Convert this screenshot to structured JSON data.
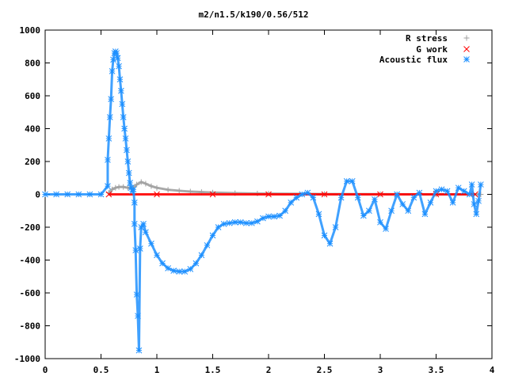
{
  "chart_data": {
    "type": "scatter",
    "title": "m2/n1.5/k190/0.56/512",
    "xlabel": "",
    "ylabel": "",
    "xlim": [
      0,
      4
    ],
    "ylim": [
      -1000,
      1000
    ],
    "x_ticks": [
      "0",
      "0.5",
      "1",
      "1.5",
      "2",
      "2.5",
      "3",
      "3.5",
      "4"
    ],
    "y_ticks": [
      "1000",
      "800",
      "600",
      "400",
      "200",
      "0",
      "-200",
      "-400",
      "-600",
      "-800",
      "-1000"
    ],
    "legend_position": "top-right",
    "grid": false,
    "series": [
      {
        "name": "R stress",
        "marker": "+",
        "color": "#a0a0a0",
        "x": [
          0.57,
          0.6,
          0.63,
          0.66,
          0.7,
          0.74,
          0.78,
          0.82,
          0.86,
          0.9,
          0.95,
          1.0,
          1.1,
          1.2,
          1.3,
          1.4,
          1.5,
          1.7,
          1.9,
          2.0,
          2.5,
          3.0,
          3.5,
          3.9
        ],
        "y": [
          10,
          30,
          40,
          45,
          45,
          40,
          35,
          60,
          75,
          65,
          50,
          40,
          28,
          22,
          17,
          14,
          11,
          7,
          5,
          4,
          2,
          1,
          0,
          0
        ]
      },
      {
        "name": "G work",
        "marker": "x",
        "color": "#ff0000",
        "x": [
          0.57,
          1.0,
          1.5,
          2.0,
          2.5,
          3.0,
          3.5,
          3.85
        ],
        "y": [
          0,
          0,
          0,
          0,
          0,
          0,
          0,
          0
        ]
      },
      {
        "name": "Acoustic flux",
        "marker": "*",
        "color": "#1e90ff",
        "x": [
          0.0,
          0.1,
          0.2,
          0.3,
          0.4,
          0.5,
          0.56,
          0.56,
          0.57,
          0.58,
          0.59,
          0.6,
          0.61,
          0.62,
          0.63,
          0.64,
          0.65,
          0.66,
          0.67,
          0.68,
          0.69,
          0.7,
          0.71,
          0.72,
          0.73,
          0.74,
          0.75,
          0.76,
          0.77,
          0.78,
          0.79,
          0.8,
          0.8,
          0.81,
          0.82,
          0.83,
          0.84,
          0.85,
          0.86,
          0.88,
          0.9,
          0.95,
          1.0,
          1.05,
          1.1,
          1.15,
          1.2,
          1.25,
          1.3,
          1.35,
          1.4,
          1.45,
          1.5,
          1.55,
          1.6,
          1.65,
          1.7,
          1.75,
          1.8,
          1.85,
          1.9,
          1.95,
          2.0,
          2.05,
          2.1,
          2.15,
          2.2,
          2.25,
          2.3,
          2.35,
          2.4,
          2.45,
          2.5,
          2.55,
          2.6,
          2.65,
          2.7,
          2.75,
          2.8,
          2.85,
          2.9,
          2.95,
          3.0,
          3.05,
          3.1,
          3.15,
          3.2,
          3.25,
          3.3,
          3.35,
          3.4,
          3.45,
          3.5,
          3.55,
          3.6,
          3.65,
          3.7,
          3.75,
          3.8,
          3.82,
          3.84,
          3.86,
          3.88,
          3.9
        ],
        "y": [
          0,
          0,
          0,
          0,
          0,
          0,
          50,
          210,
          340,
          470,
          580,
          750,
          820,
          860,
          870,
          860,
          830,
          780,
          700,
          630,
          550,
          470,
          400,
          340,
          270,
          200,
          130,
          70,
          40,
          20,
          30,
          -50,
          -180,
          -340,
          -610,
          -740,
          -950,
          -330,
          -200,
          -180,
          -230,
          -300,
          -370,
          -420,
          -450,
          -465,
          -470,
          -470,
          -455,
          -420,
          -370,
          -310,
          -250,
          -200,
          -180,
          -175,
          -170,
          -170,
          -175,
          -175,
          -165,
          -145,
          -135,
          -135,
          -130,
          -100,
          -50,
          -20,
          0,
          10,
          -20,
          -120,
          -250,
          -300,
          -200,
          -20,
          80,
          80,
          -20,
          -130,
          -100,
          -30,
          -170,
          -210,
          -100,
          0,
          -60,
          -100,
          -20,
          10,
          -120,
          -50,
          20,
          30,
          20,
          -50,
          40,
          20,
          0,
          60,
          -60,
          -120,
          -40,
          60
        ]
      }
    ]
  }
}
